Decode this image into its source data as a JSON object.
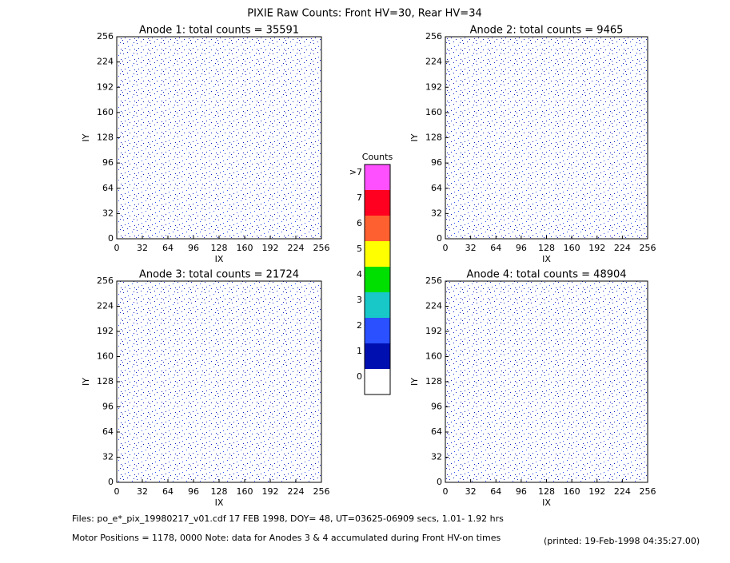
{
  "title": "PIXIE Raw Counts:  Front HV=30, Rear HV=34",
  "chart_data": [
    {
      "type": "heatmap",
      "title": "Anode 1: total counts = 35591",
      "xlabel": "IX",
      "ylabel": "IY",
      "xlim": [
        0,
        256
      ],
      "ylim": [
        0,
        256
      ],
      "xticks": [
        0,
        32,
        64,
        96,
        128,
        160,
        192,
        224,
        256
      ],
      "yticks": [
        0,
        32,
        64,
        96,
        128,
        160,
        192,
        224,
        256
      ]
    },
    {
      "type": "heatmap",
      "title": "Anode 2: total counts = 9465",
      "xlabel": "IX",
      "ylabel": "IY",
      "xlim": [
        0,
        256
      ],
      "ylim": [
        0,
        256
      ],
      "xticks": [
        0,
        32,
        64,
        96,
        128,
        160,
        192,
        224,
        256
      ],
      "yticks": [
        0,
        32,
        64,
        96,
        128,
        160,
        192,
        224,
        256
      ]
    },
    {
      "type": "heatmap",
      "title": "Anode 3: total counts = 21724",
      "xlabel": "IX",
      "ylabel": "IY",
      "xlim": [
        0,
        256
      ],
      "ylim": [
        0,
        256
      ],
      "xticks": [
        0,
        32,
        64,
        96,
        128,
        160,
        192,
        224,
        256
      ],
      "yticks": [
        0,
        32,
        64,
        96,
        128,
        160,
        192,
        224,
        256
      ]
    },
    {
      "type": "heatmap",
      "title": "Anode 4: total counts = 48904",
      "xlabel": "IX",
      "ylabel": "IY",
      "xlim": [
        0,
        256
      ],
      "ylim": [
        0,
        256
      ],
      "xticks": [
        0,
        32,
        64,
        96,
        128,
        160,
        192,
        224,
        256
      ],
      "yticks": [
        0,
        32,
        64,
        96,
        128,
        160,
        192,
        224,
        256
      ]
    }
  ],
  "colorbar": {
    "title": "Counts",
    "levels": [
      {
        "label": "0",
        "color": "#ffffff"
      },
      {
        "label": "1",
        "color": "#0010b0"
      },
      {
        "label": "2",
        "color": "#2a50ff"
      },
      {
        "label": "3",
        "color": "#18c8c8"
      },
      {
        "label": "4",
        "color": "#00e000"
      },
      {
        "label": "5",
        "color": "#ffff00"
      },
      {
        "label": "6",
        "color": "#ff6030"
      },
      {
        "label": "7",
        "color": "#ff0020"
      },
      {
        "label": ">7",
        "color": "#ff50ff"
      }
    ]
  },
  "footer": {
    "files": "Files: po_e*_pix_19980217_v01.cdf    17 FEB 1998, DOY= 48, UT=03625-06909 secs,   1.01- 1.92 hrs",
    "motor": "Motor Positions = 1178, 0000   Note: data for Anodes 3 & 4 accumulated during Front HV-on times",
    "printed": "(printed: 19-Feb-1998 04:35:27.00)"
  }
}
